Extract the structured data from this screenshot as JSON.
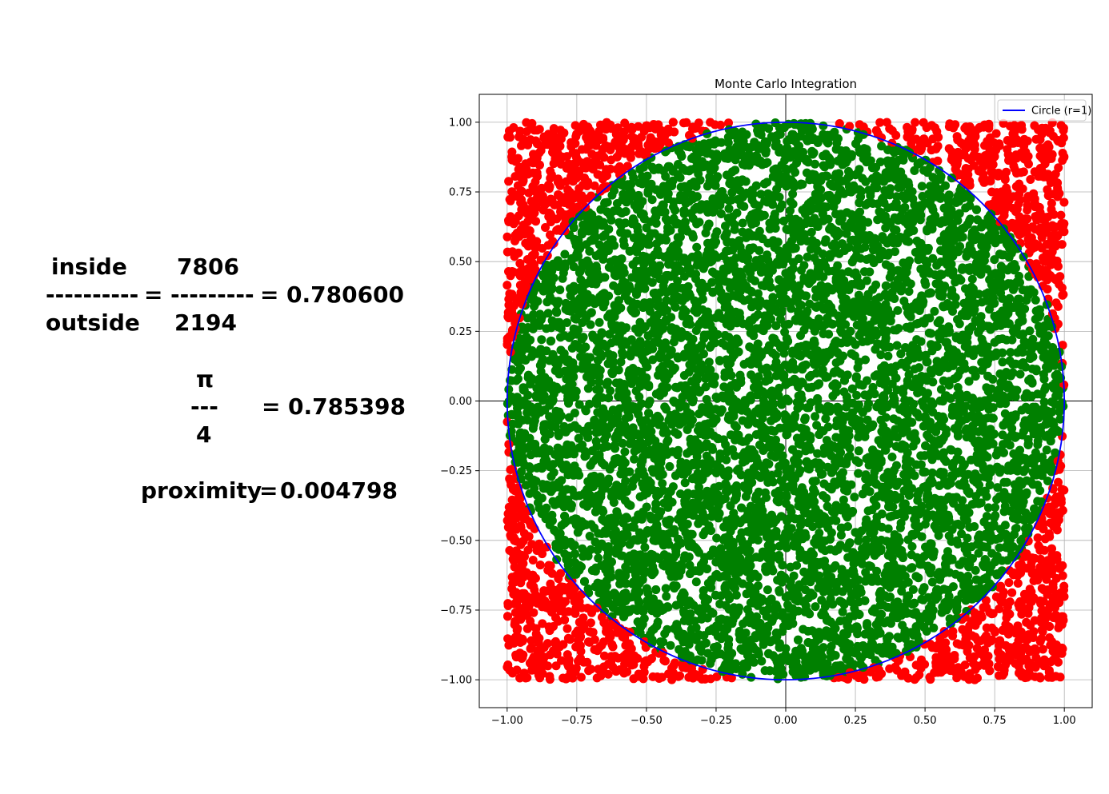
{
  "formula": {
    "inside_label": "inside",
    "outside_label": "outside",
    "ratio_dashes_label": "----------",
    "ratio_dashes_value": "---------",
    "equals": "=",
    "inside_count": "7806",
    "outside_count": "2194",
    "ratio_value": "0.780600",
    "pi_symbol": "π",
    "pi_dashes": "---",
    "pi_denominator": "4",
    "pi_value": "0.785398",
    "proximity_label": "proximity",
    "proximity_value": "0.004798"
  },
  "chart_data": {
    "type": "scatter",
    "title": "Monte Carlo Integration",
    "xlabel": "",
    "ylabel": "",
    "xlim": [
      -1.1,
      1.1
    ],
    "ylim": [
      -1.1,
      1.1
    ],
    "x_ticks": [
      -1.0,
      -0.75,
      -0.5,
      -0.25,
      0.0,
      0.25,
      0.5,
      0.75,
      1.0
    ],
    "y_ticks": [
      -1.0,
      -0.75,
      -0.5,
      -0.25,
      0.0,
      0.25,
      0.5,
      0.75,
      1.0
    ],
    "x_tick_labels": [
      "−1.00",
      "−0.75",
      "−0.50",
      "−0.25",
      "0.00",
      "0.25",
      "0.50",
      "0.75",
      "1.00"
    ],
    "y_tick_labels": [
      "−1.00",
      "−0.75",
      "−0.50",
      "−0.25",
      "0.00",
      "0.25",
      "0.50",
      "0.75",
      "1.00"
    ],
    "grid": true,
    "axes_lines_at_origin": true,
    "legend_position": "top-right",
    "series": [
      {
        "name": "Circle (r=1)",
        "kind": "line",
        "color": "#0000ff",
        "shape": "unit-circle",
        "radius": 1
      },
      {
        "kind": "scatter",
        "color": "#008000",
        "region": "inside unit circle",
        "count": 7806
      },
      {
        "kind": "scatter",
        "color": "#ff0000",
        "region": "outside unit circle, within [-1,1] square",
        "count": 2194
      }
    ],
    "sampling_domain": {
      "x": [
        -1,
        1
      ],
      "y": [
        -1,
        1
      ]
    }
  }
}
